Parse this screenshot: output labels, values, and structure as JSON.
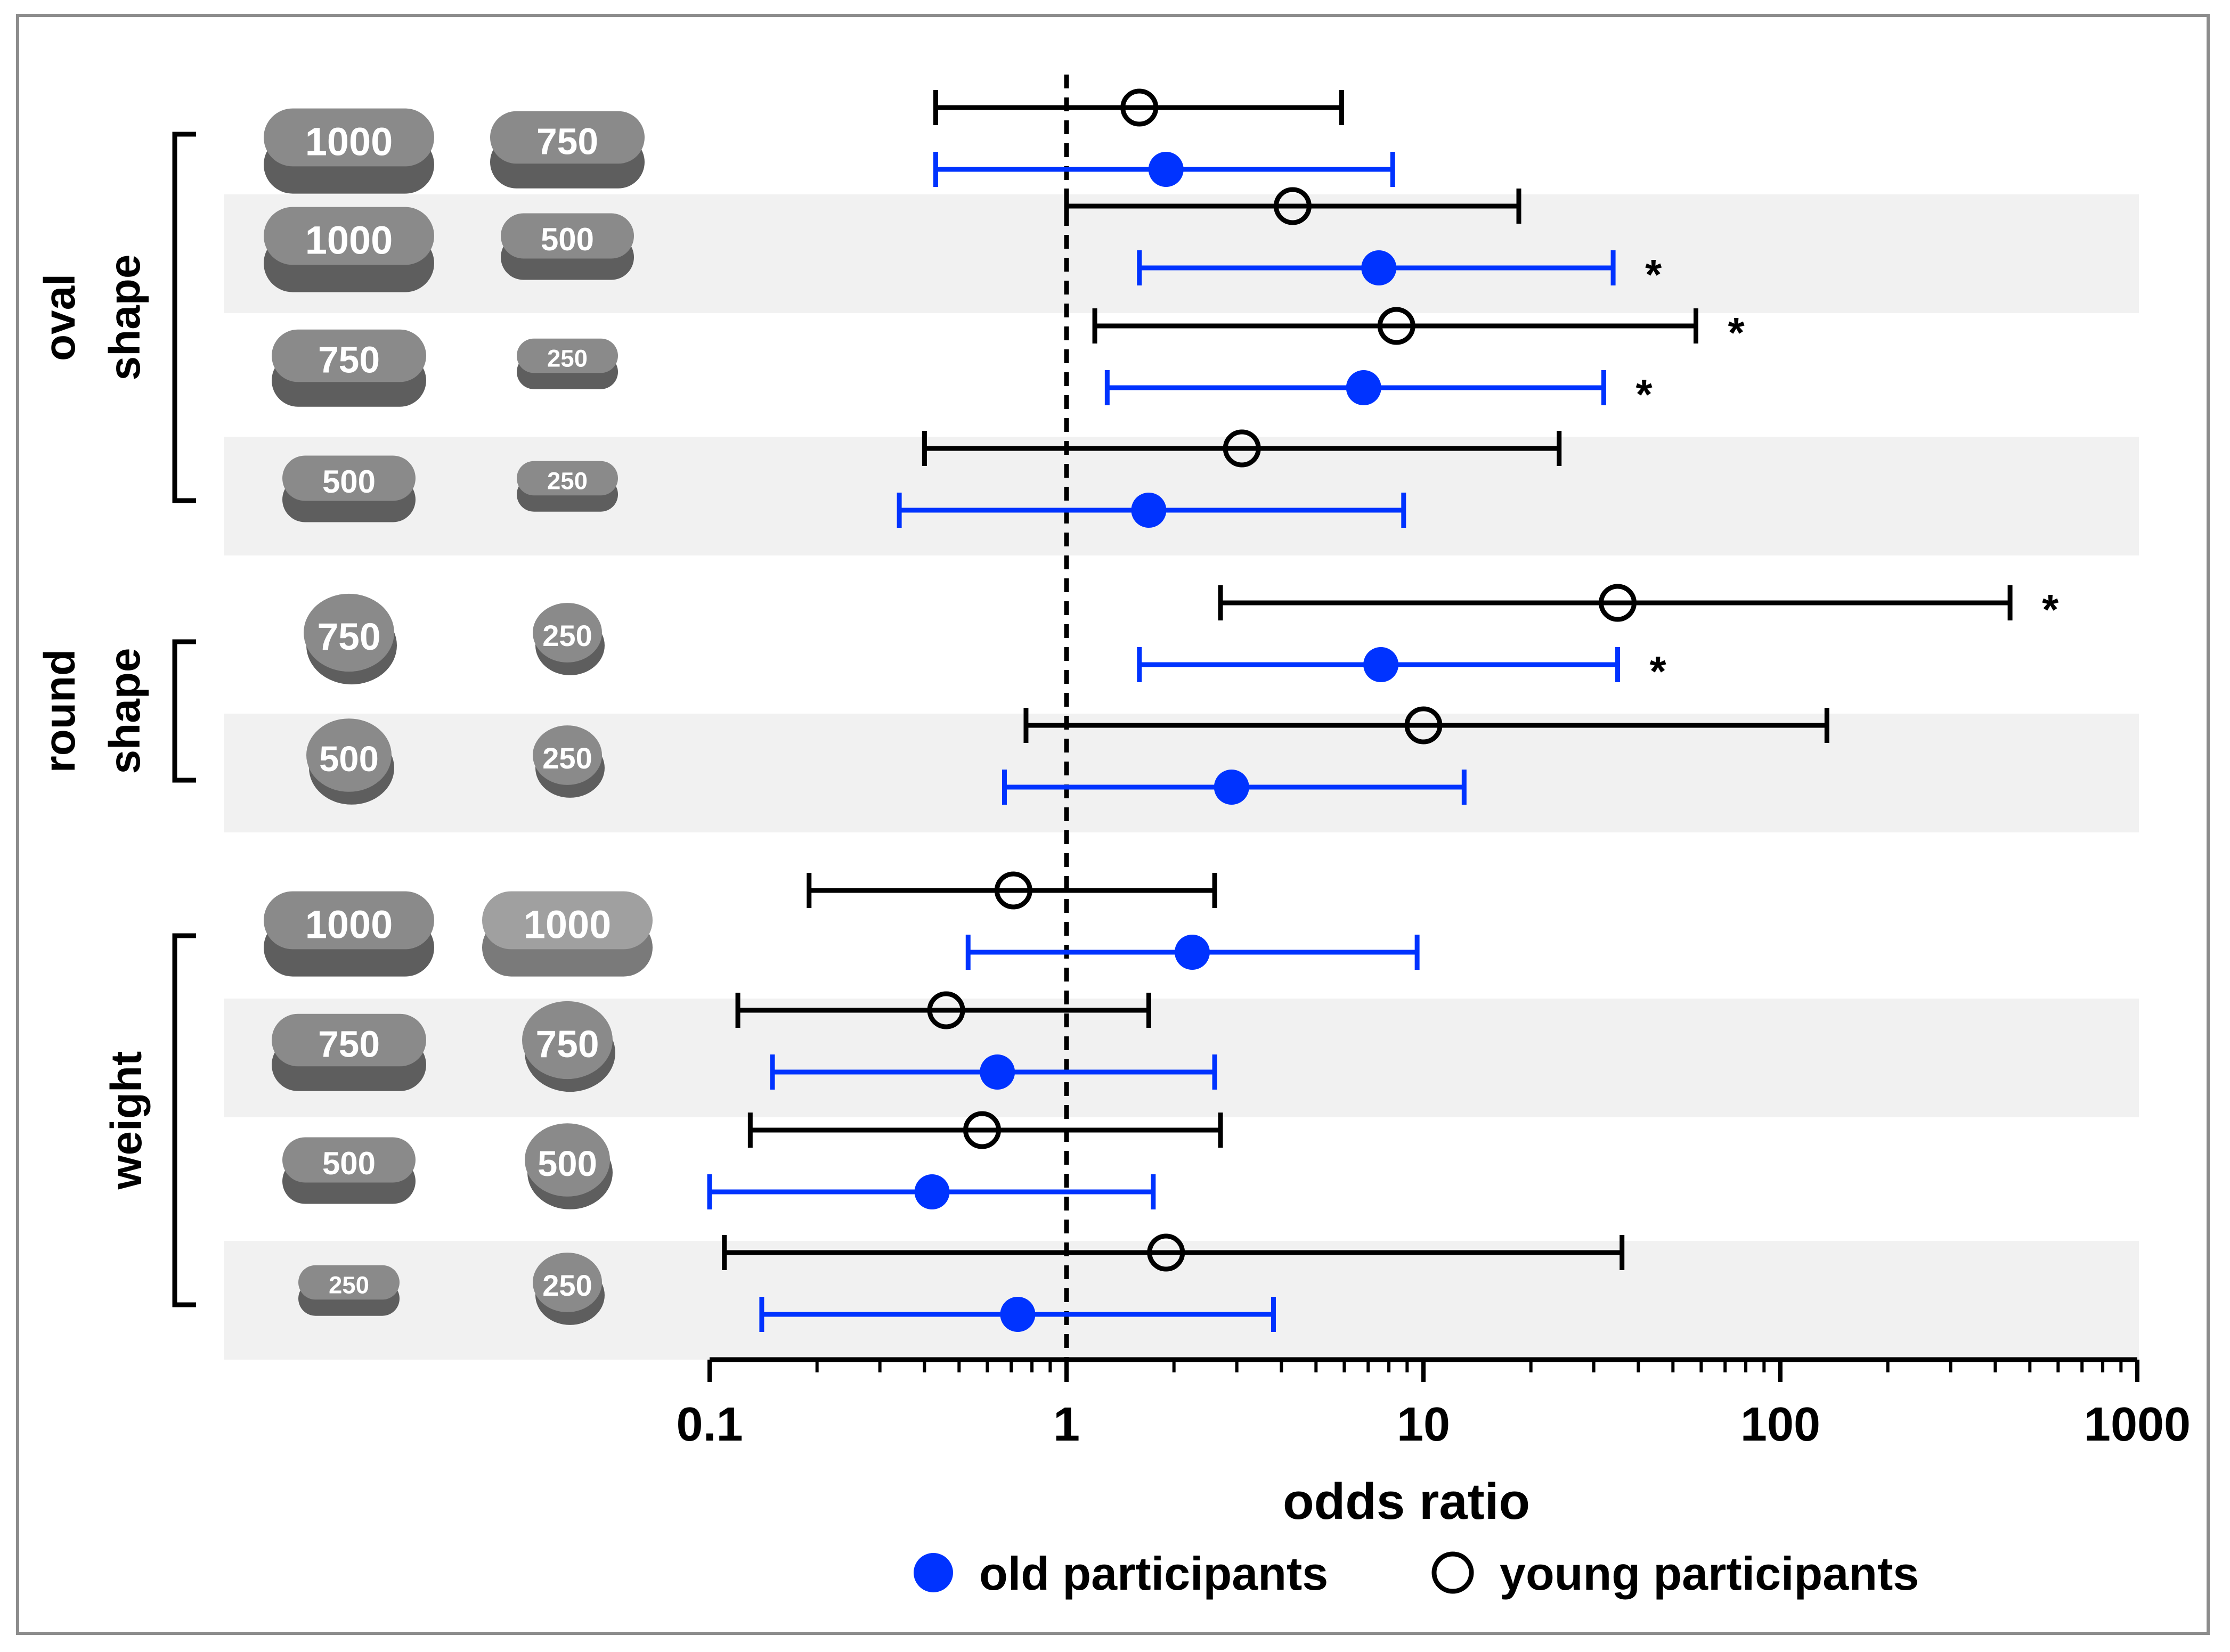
{
  "chart_data": {
    "type": "forest",
    "xlabel": "odds ratio",
    "x_scale": "log",
    "xlim": [
      0.1,
      1000
    ],
    "x_ticks": [
      0.1,
      1,
      10,
      100,
      1000
    ],
    "x_tick_labels": [
      "0.1",
      "1",
      "10",
      "100",
      "1000"
    ],
    "reference_line": 1,
    "legend": {
      "position": "bottom",
      "entries": [
        {
          "name": "old participants",
          "marker": "filled-circle",
          "color": "#0033ff"
        },
        {
          "name": "young participants",
          "marker": "open-circle",
          "color": "#000000"
        }
      ]
    },
    "groups": [
      {
        "name": "oval shape",
        "line1": "oval",
        "line2": "shape",
        "rows": [
          0,
          1,
          2,
          3
        ]
      },
      {
        "name": "round shape",
        "line1": "round",
        "line2": "shape",
        "rows": [
          4,
          5
        ]
      },
      {
        "name": "weight",
        "line1": "weight",
        "line2": "",
        "rows": [
          6,
          7,
          8,
          9
        ]
      }
    ],
    "rows": [
      {
        "comparison": [
          "1000",
          "750"
        ],
        "tablets": [
          {
            "label": "1000",
            "shape": "oval"
          },
          {
            "label": "750",
            "shape": "oval"
          }
        ],
        "shaded": false,
        "young": {
          "or": 1.6,
          "lo": 0.43,
          "hi": 5.9,
          "sig": false
        },
        "old": {
          "or": 1.9,
          "lo": 0.43,
          "hi": 8.2,
          "sig": false
        }
      },
      {
        "comparison": [
          "1000",
          "500"
        ],
        "tablets": [
          {
            "label": "1000",
            "shape": "oval"
          },
          {
            "label": "500",
            "shape": "oval"
          }
        ],
        "shaded": true,
        "young": {
          "or": 4.3,
          "lo": 1.0,
          "hi": 18.5,
          "sig": false
        },
        "old": {
          "or": 7.5,
          "lo": 1.6,
          "hi": 34,
          "sig": true
        }
      },
      {
        "comparison": [
          "750",
          "250"
        ],
        "tablets": [
          {
            "label": "750",
            "shape": "oval"
          },
          {
            "label": "250",
            "shape": "oval"
          }
        ],
        "shaded": false,
        "young": {
          "or": 8.4,
          "lo": 1.2,
          "hi": 58,
          "sig": true
        },
        "old": {
          "or": 6.8,
          "lo": 1.3,
          "hi": 32,
          "sig": true
        }
      },
      {
        "comparison": [
          "500",
          "250"
        ],
        "tablets": [
          {
            "label": "500",
            "shape": "oval"
          },
          {
            "label": "250",
            "shape": "oval"
          }
        ],
        "shaded": true,
        "young": {
          "or": 3.1,
          "lo": 0.4,
          "hi": 24,
          "sig": false
        },
        "old": {
          "or": 1.7,
          "lo": 0.34,
          "hi": 8.8,
          "sig": false
        }
      },
      {
        "comparison": [
          "750",
          "250"
        ],
        "tablets": [
          {
            "label": "750",
            "shape": "round"
          },
          {
            "label": "250",
            "shape": "round"
          }
        ],
        "shaded": false,
        "young": {
          "or": 35,
          "lo": 2.7,
          "hi": 440,
          "sig": true
        },
        "old": {
          "or": 7.6,
          "lo": 1.6,
          "hi": 35,
          "sig": true
        }
      },
      {
        "comparison": [
          "500",
          "250"
        ],
        "tablets": [
          {
            "label": "500",
            "shape": "round"
          },
          {
            "label": "250",
            "shape": "round"
          }
        ],
        "shaded": true,
        "young": {
          "or": 10,
          "lo": 0.77,
          "hi": 135,
          "sig": false
        },
        "old": {
          "or": 2.9,
          "lo": 0.67,
          "hi": 13,
          "sig": false
        }
      },
      {
        "comparison": [
          "1000",
          "1000"
        ],
        "tablets": [
          {
            "label": "1000",
            "shape": "oval"
          },
          {
            "label": "1000",
            "shape": "oval-light"
          }
        ],
        "shaded": false,
        "young": {
          "or": 0.71,
          "lo": 0.19,
          "hi": 2.6,
          "sig": false
        },
        "old": {
          "or": 2.25,
          "lo": 0.53,
          "hi": 9.6,
          "sig": false
        }
      },
      {
        "comparison": [
          "750",
          "750"
        ],
        "tablets": [
          {
            "label": "750",
            "shape": "oval"
          },
          {
            "label": "750",
            "shape": "round"
          }
        ],
        "shaded": true,
        "young": {
          "or": 0.46,
          "lo": 0.12,
          "hi": 1.7,
          "sig": false
        },
        "old": {
          "or": 0.64,
          "lo": 0.15,
          "hi": 2.6,
          "sig": false
        }
      },
      {
        "comparison": [
          "500",
          "500"
        ],
        "tablets": [
          {
            "label": "500",
            "shape": "oval"
          },
          {
            "label": "500",
            "shape": "round"
          }
        ],
        "shaded": false,
        "young": {
          "or": 0.58,
          "lo": 0.13,
          "hi": 2.7,
          "sig": false
        },
        "old": {
          "or": 0.42,
          "lo": 0.1,
          "hi": 1.75,
          "sig": false
        }
      },
      {
        "comparison": [
          "250",
          "250"
        ],
        "tablets": [
          {
            "label": "250",
            "shape": "oval"
          },
          {
            "label": "250",
            "shape": "round"
          }
        ],
        "shaded": true,
        "young": {
          "or": 1.9,
          "lo": 0.11,
          "hi": 36,
          "sig": false
        },
        "old": {
          "or": 0.73,
          "lo": 0.14,
          "hi": 3.8,
          "sig": false
        }
      }
    ],
    "significance_marker": "*"
  }
}
